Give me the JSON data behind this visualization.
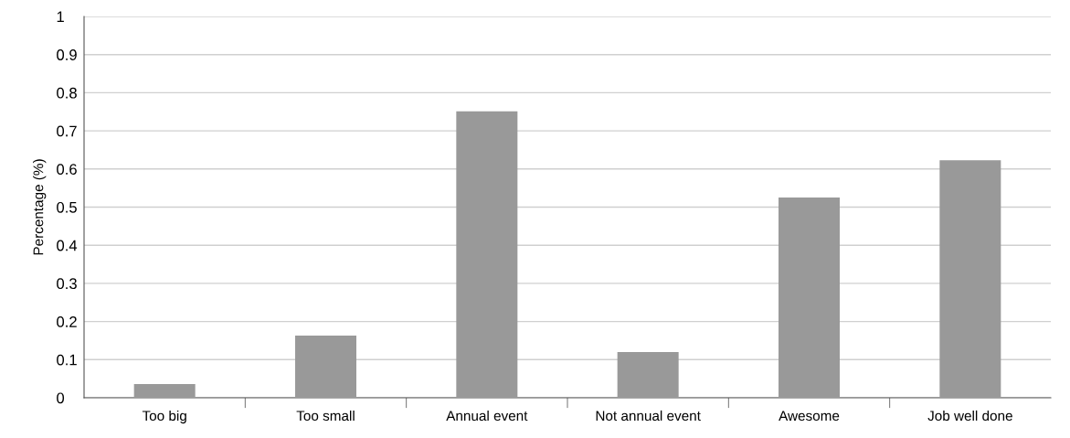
{
  "chart_data": {
    "type": "bar",
    "ylabel": "Percentage (%)",
    "categories": [
      "Too big",
      "Too small",
      "Annual event",
      "Not annual event",
      "Awesome",
      "Job well done"
    ],
    "values": [
      0.036,
      0.163,
      0.751,
      0.12,
      0.525,
      0.623
    ],
    "color": "#999999",
    "ylim": [
      0,
      1
    ],
    "yticks": [
      0,
      0.1,
      0.2,
      0.3,
      0.4,
      0.5,
      0.6,
      0.7,
      0.8,
      0.9,
      1
    ],
    "grid": "y",
    "legend": false
  }
}
